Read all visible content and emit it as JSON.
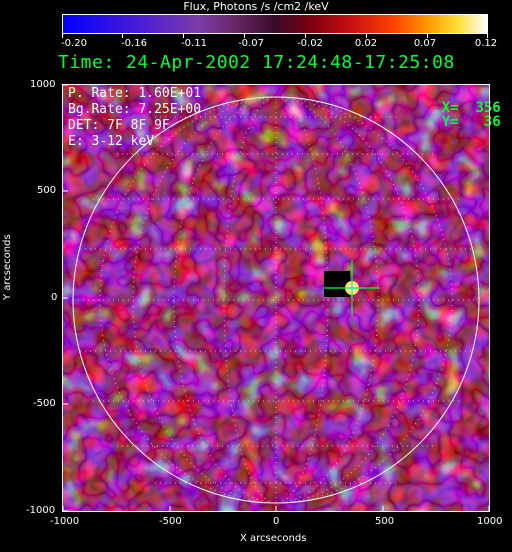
{
  "colorbar": {
    "title": "Flux, Photons /s /cm2 /keV",
    "ticks": [
      "-0.20",
      "-0.16",
      "-0.11",
      "-0.07",
      "-0.02",
      "0.02",
      "0.07",
      "0.12"
    ]
  },
  "time_line": "Time: 24-Apr-2002 17:24:48-17:25:08",
  "info": {
    "peak_rate": "P. Rate:  1.60E+01",
    "bg_rate": "Bg.Rate:  7.25E+00",
    "detectors": "DET: 7F 8F 9F",
    "energy": "E: 3-12 keV"
  },
  "cursor_readout": {
    "x_label": "X=",
    "x_value": "356",
    "y_label": "Y=",
    "y_value": "36"
  },
  "axes": {
    "xlabel": "X arcseconds",
    "ylabel": "Y arcseconds",
    "xticks": [
      "-1000",
      "-500",
      "0",
      "500",
      "1000"
    ],
    "yticks": [
      "1000",
      "500",
      "0",
      "-500",
      "-1000"
    ],
    "xlim": [
      -1000,
      1000
    ],
    "ylim": [
      -1000,
      1000
    ]
  },
  "colors": {
    "readout_green": "#00ff33",
    "limb": "#ffffff",
    "grid": "#cccccc"
  }
}
